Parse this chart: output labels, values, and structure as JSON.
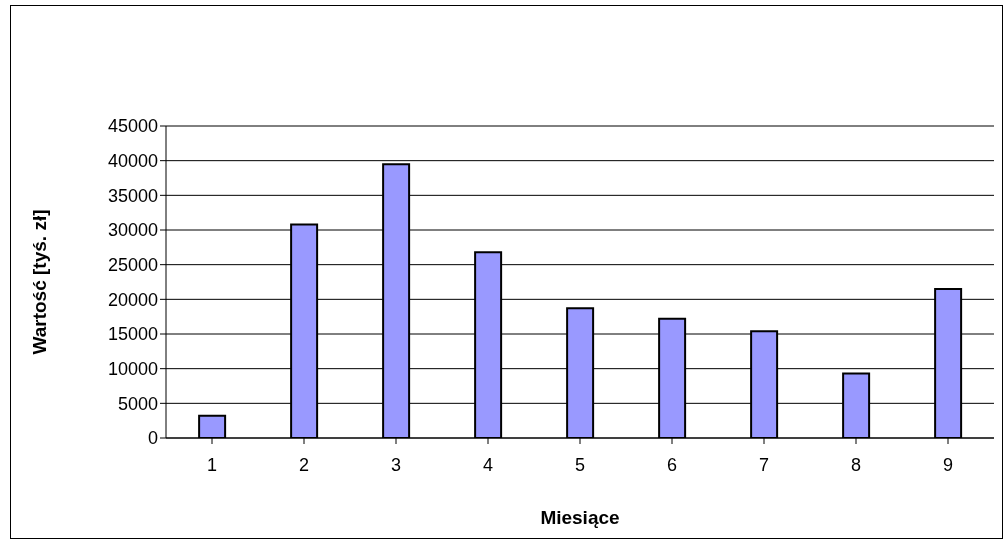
{
  "chart_data": {
    "type": "bar",
    "xlabel": "Miesiące",
    "ylabel": "Wartość [tyś. zł]",
    "categories": [
      "1",
      "2",
      "3",
      "4",
      "5",
      "6",
      "7",
      "8",
      "9"
    ],
    "values": [
      3200,
      30800,
      39500,
      26800,
      18700,
      17200,
      15400,
      9300,
      21500
    ],
    "color": "#9999ff",
    "ylim": [
      0,
      45000
    ],
    "yticks": [
      0,
      5000,
      10000,
      15000,
      20000,
      25000,
      30000,
      35000,
      40000,
      45000
    ],
    "grid": "y",
    "legend": false
  }
}
